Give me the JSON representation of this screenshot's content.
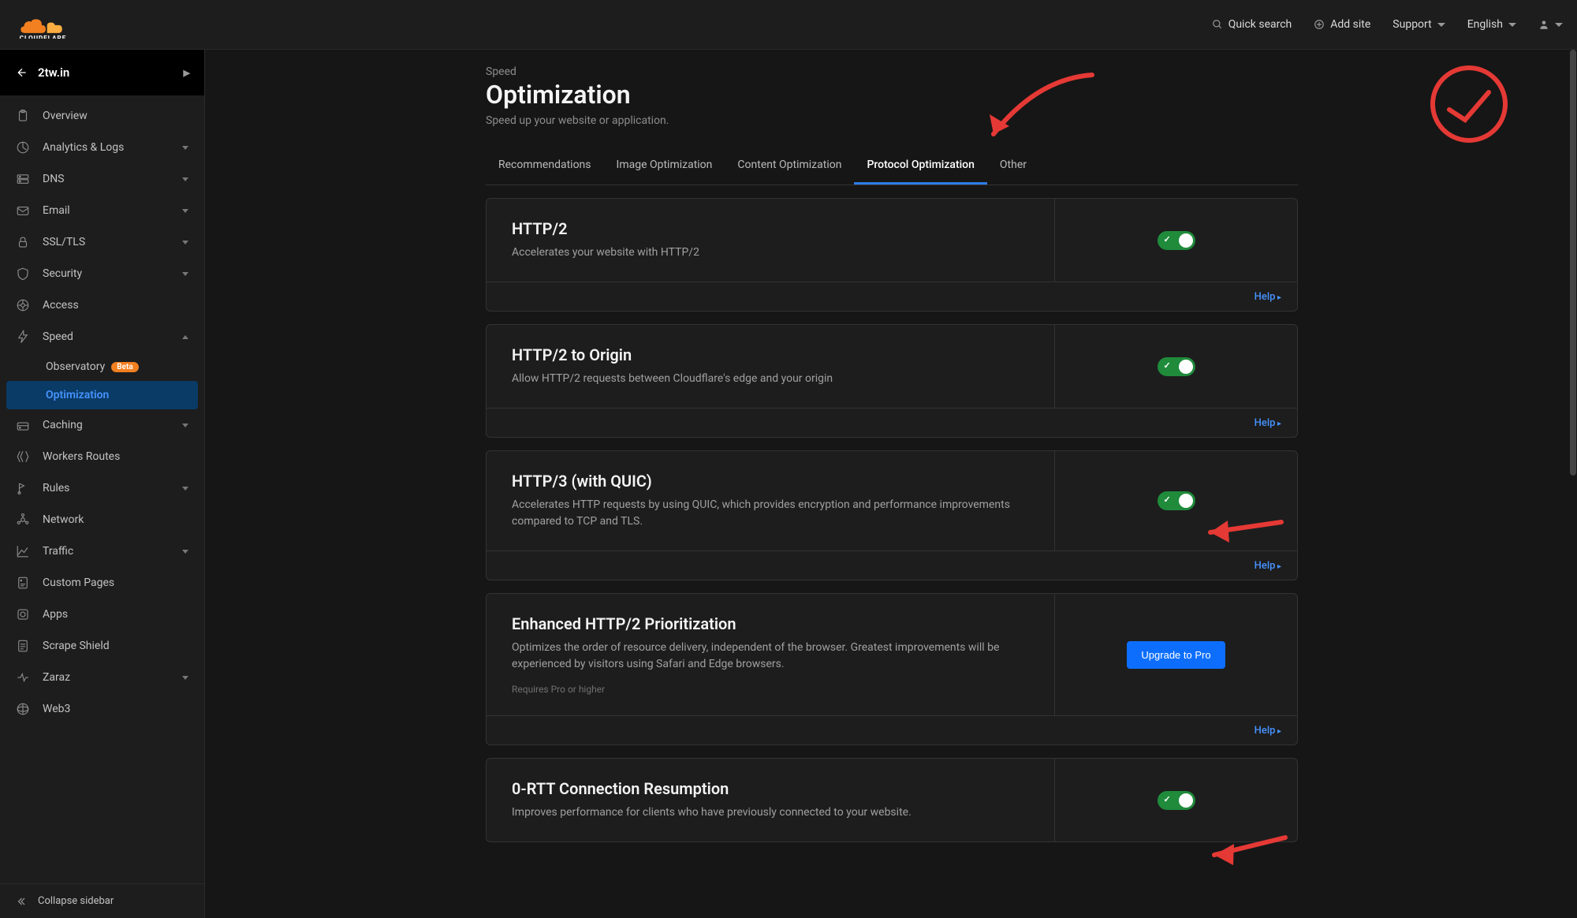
{
  "brand": "CLOUDFLARE",
  "topbar": {
    "search": "Quick search",
    "add_site": "Add site",
    "support": "Support",
    "language": "English"
  },
  "site": {
    "name": "2tw.in"
  },
  "sidebar": {
    "items": [
      {
        "label": "Overview",
        "icon": "clipboard"
      },
      {
        "label": "Analytics & Logs",
        "icon": "chart",
        "expandable": true
      },
      {
        "label": "DNS",
        "icon": "dns",
        "expandable": true
      },
      {
        "label": "Email",
        "icon": "mail",
        "expandable": true
      },
      {
        "label": "SSL/TLS",
        "icon": "lock",
        "expandable": true
      },
      {
        "label": "Security",
        "icon": "shield",
        "expandable": true
      },
      {
        "label": "Access",
        "icon": "access"
      },
      {
        "label": "Speed",
        "icon": "bolt",
        "expandable": true,
        "expanded": true
      },
      {
        "label": "Caching",
        "icon": "drive",
        "expandable": true
      },
      {
        "label": "Workers Routes",
        "icon": "workers"
      },
      {
        "label": "Rules",
        "icon": "rules",
        "expandable": true
      },
      {
        "label": "Network",
        "icon": "network"
      },
      {
        "label": "Traffic",
        "icon": "traffic",
        "expandable": true
      },
      {
        "label": "Custom Pages",
        "icon": "pages"
      },
      {
        "label": "Apps",
        "icon": "apps"
      },
      {
        "label": "Scrape Shield",
        "icon": "scrape"
      },
      {
        "label": "Zaraz",
        "icon": "zaraz",
        "expandable": true
      },
      {
        "label": "Web3",
        "icon": "web3"
      }
    ],
    "speed_sub": {
      "observatory": "Observatory",
      "beta": "Beta",
      "optimization": "Optimization"
    },
    "collapse": "Collapse sidebar"
  },
  "page": {
    "crumb": "Speed",
    "title": "Optimization",
    "subtitle": "Speed up your website or application."
  },
  "tabs": [
    {
      "label": "Recommendations"
    },
    {
      "label": "Image Optimization"
    },
    {
      "label": "Content Optimization"
    },
    {
      "label": "Protocol Optimization",
      "active": true
    },
    {
      "label": "Other"
    }
  ],
  "cards": [
    {
      "title": "HTTP/2",
      "desc": "Accelerates your website with HTTP/2",
      "control": "toggle-on",
      "help": "Help"
    },
    {
      "title": "HTTP/2 to Origin",
      "desc": "Allow HTTP/2 requests between Cloudflare's edge and your origin",
      "control": "toggle-on",
      "help": "Help"
    },
    {
      "title": "HTTP/3 (with QUIC)",
      "desc": "Accelerates HTTP requests by using QUIC, which provides encryption and performance improvements compared to TCP and TLS.",
      "control": "toggle-on",
      "help": "Help"
    },
    {
      "title": "Enhanced HTTP/2 Prioritization",
      "desc": "Optimizes the order of resource delivery, independent of the browser. Greatest improvements will be experienced by visitors using Safari and Edge browsers.",
      "note": "Requires Pro or higher",
      "control": "upgrade",
      "upgrade_label": "Upgrade to Pro",
      "help": "Help"
    },
    {
      "title": "0-RTT Connection Resumption",
      "desc": "Improves performance for clients who have previously connected to your website.",
      "control": "toggle-on"
    }
  ],
  "colors": {
    "accent": "#4693ff",
    "toggle_on": "#1f8b3b",
    "annotation": "#e53935",
    "upgrade_btn": "#0d6efd",
    "cf_orange": "#f38020"
  }
}
